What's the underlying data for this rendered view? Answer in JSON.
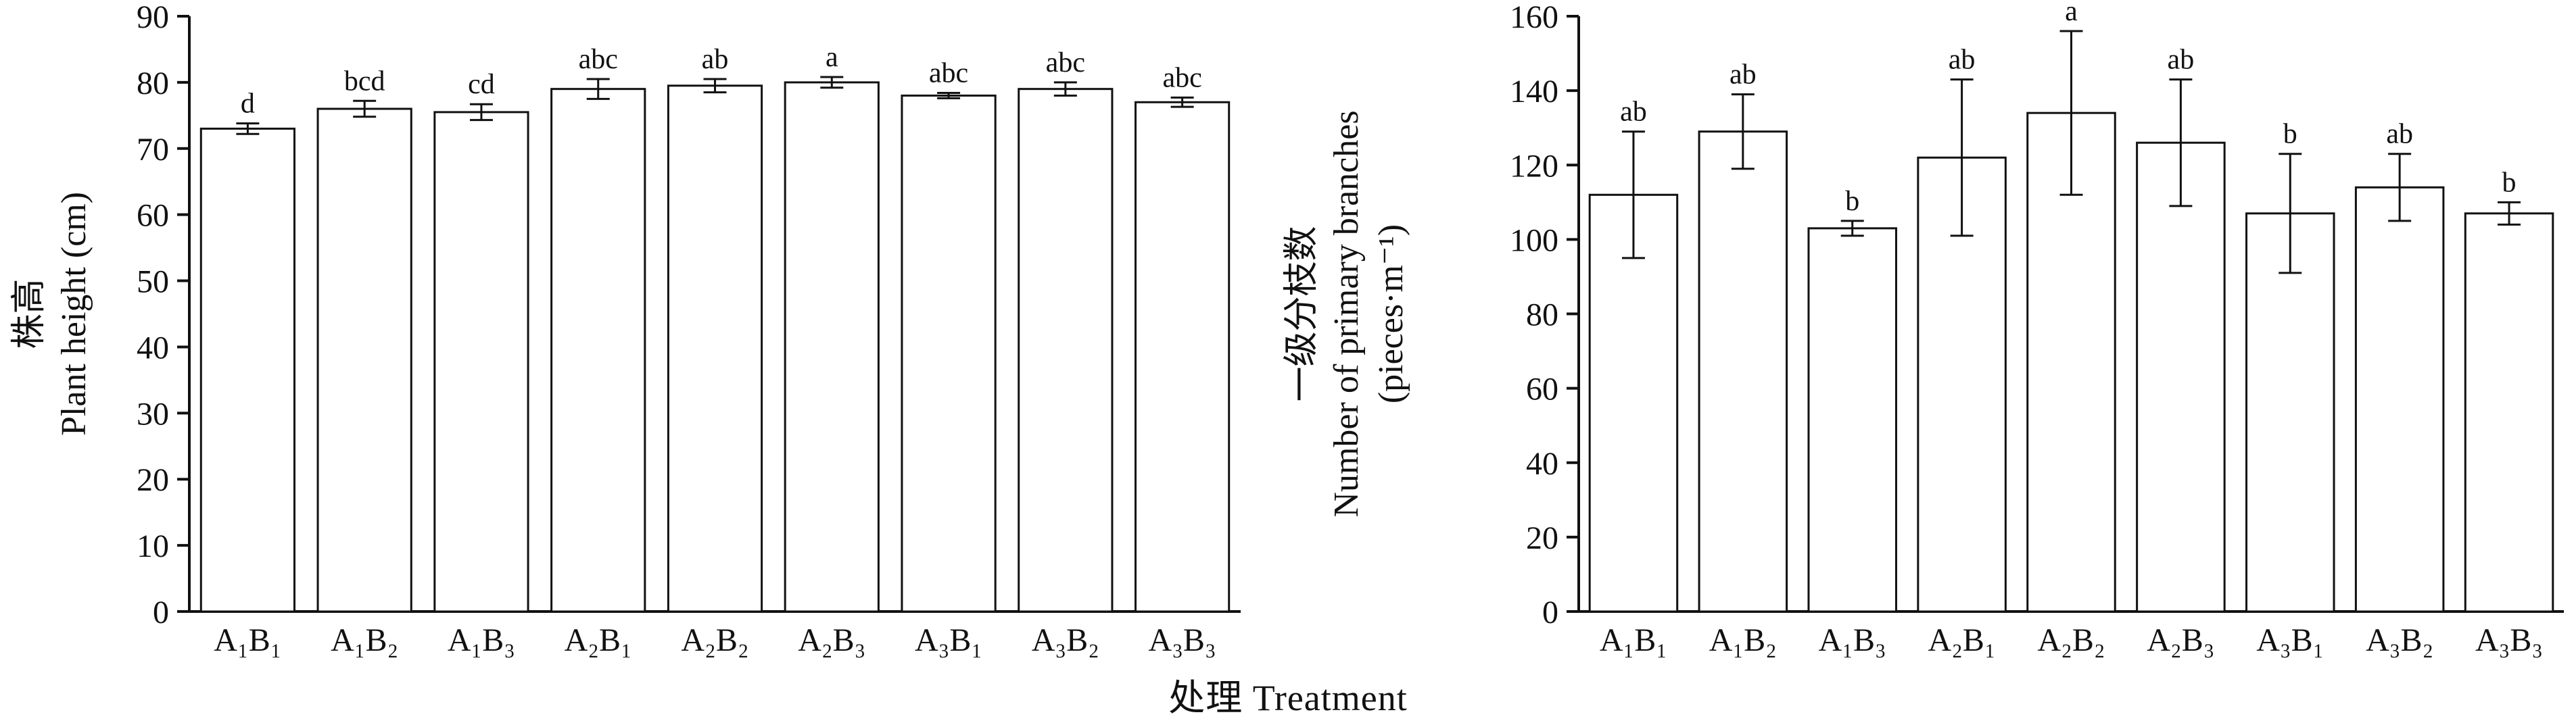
{
  "xaxis_title": "处理 Treatment",
  "colors": {
    "bar_fill": "#ffffff",
    "bar_stroke": "#111111",
    "axis": "#111111",
    "text": "#111111"
  },
  "chart_data": [
    {
      "type": "bar",
      "title": "",
      "ylabel_cn": "株高",
      "ylabel_en": "Plant height (cm)",
      "ylabel_en2": "",
      "xlabel": "处理 Treatment",
      "categories": [
        "A₁B₁",
        "A₁B₂",
        "A₁B₃",
        "A₂B₁",
        "A₂B₂",
        "A₂B₃",
        "A₃B₁",
        "A₃B₂",
        "A₃B₃"
      ],
      "values": [
        73,
        76,
        75.5,
        79,
        79.5,
        80,
        78,
        79,
        77
      ],
      "errors": [
        0.8,
        1.2,
        1.2,
        1.5,
        1.0,
        0.8,
        0.4,
        1.0,
        0.7
      ],
      "letters": [
        "d",
        "bcd",
        "cd",
        "abc",
        "ab",
        "a",
        "abc",
        "abc",
        "abc"
      ],
      "ylim": [
        0,
        90
      ],
      "ytick_step": 10,
      "grid": false,
      "legend": "none"
    },
    {
      "type": "bar",
      "title": "",
      "ylabel_cn": "一级分枝数",
      "ylabel_en": "Number of primary branches",
      "ylabel_en2": "(pieces·m⁻¹)",
      "xlabel": "处理 Treatment",
      "categories": [
        "A₁B₁",
        "A₁B₂",
        "A₁B₃",
        "A₂B₁",
        "A₂B₂",
        "A₂B₃",
        "A₃B₁",
        "A₃B₂",
        "A₃B₃"
      ],
      "values": [
        112,
        129,
        103,
        122,
        134,
        126,
        107,
        114,
        107
      ],
      "errors": [
        17,
        10,
        2,
        21,
        22,
        17,
        16,
        9,
        3
      ],
      "letters": [
        "ab",
        "ab",
        "b",
        "ab",
        "a",
        "ab",
        "b",
        "ab",
        "b"
      ],
      "ylim": [
        0,
        160
      ],
      "ytick_step": 20,
      "grid": false,
      "legend": "none"
    }
  ]
}
